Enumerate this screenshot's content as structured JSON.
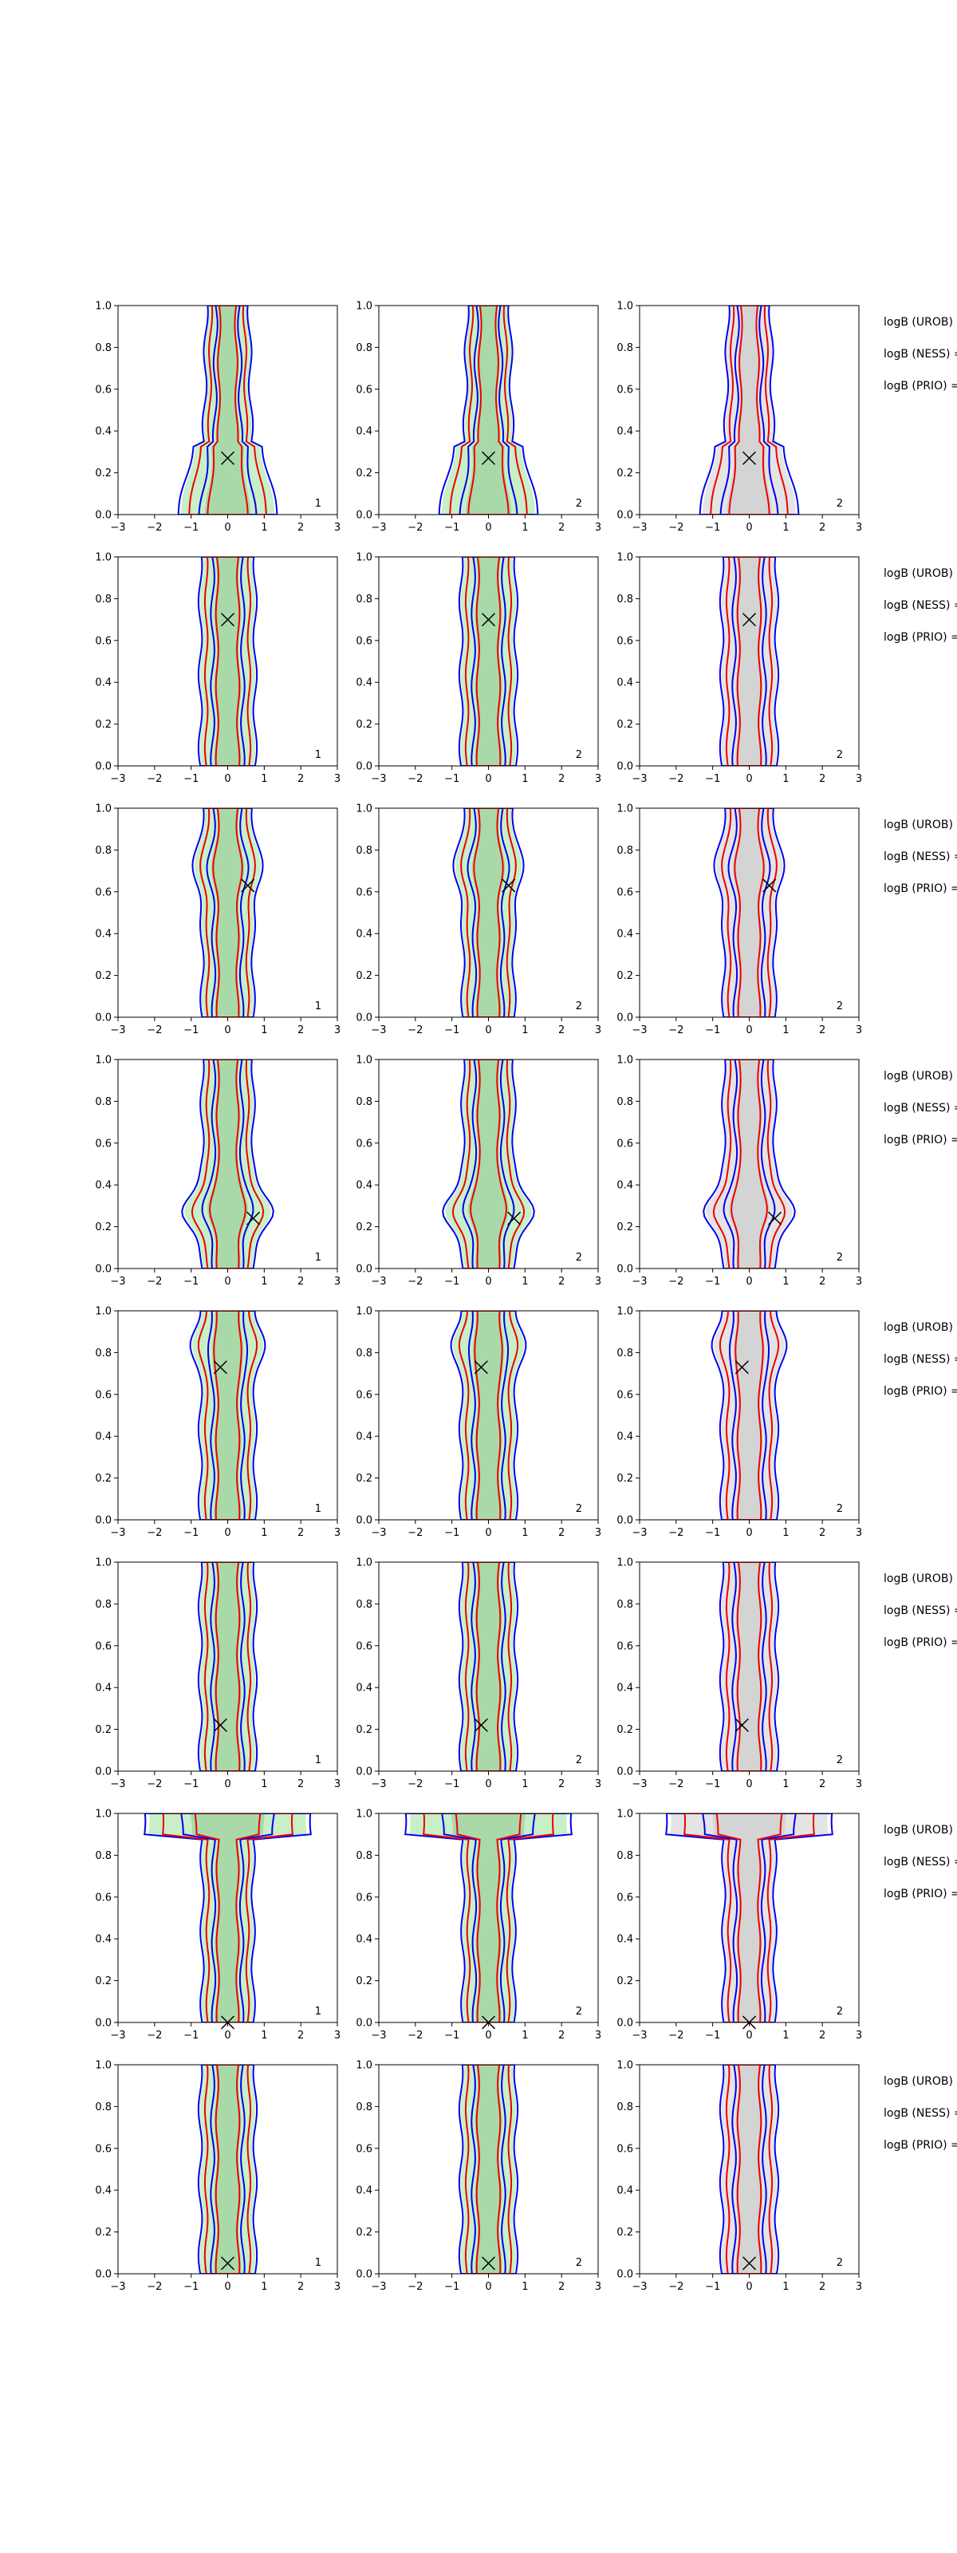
{
  "chart_data": {
    "type": "contour-grid",
    "description_rows": 8,
    "columns": 3,
    "xlim": [
      -3,
      3
    ],
    "ylim": [
      0.0,
      1.0
    ],
    "x_ticks": [
      "−3",
      "−2",
      "−1",
      "0",
      "1",
      "2",
      "3"
    ],
    "y_ticks": [
      "0.0",
      "0.2",
      "0.4",
      "0.6",
      "0.8",
      "1.0"
    ],
    "column_notes": [
      "1",
      "2",
      "2"
    ],
    "fill_colors": [
      "#c8efc8",
      "#c8efc8",
      "#e4e4e4"
    ],
    "line_colors": {
      "outer": "#0000ee",
      "inner": "#ee0000"
    },
    "row_labels": [
      "logB (UROB) =",
      "logB (NESS) =",
      "logB (PRIO) ="
    ],
    "markers": [
      {
        "x": 0.0,
        "y": 0.27
      },
      {
        "x": 0.0,
        "y": 0.7
      },
      {
        "x": 0.55,
        "y": 0.63
      },
      {
        "x": 0.7,
        "y": 0.24
      },
      {
        "x": -0.2,
        "y": 0.73
      },
      {
        "x": -0.2,
        "y": 0.22
      },
      {
        "x": 0.0,
        "y": 0.0
      },
      {
        "x": 0.0,
        "y": 0.05
      }
    ],
    "row_shapes": [
      "bulb-low",
      "narrow",
      "narrow-dip",
      "wide-low",
      "narrow-top",
      "narrow",
      "wide-top",
      "narrow"
    ]
  }
}
